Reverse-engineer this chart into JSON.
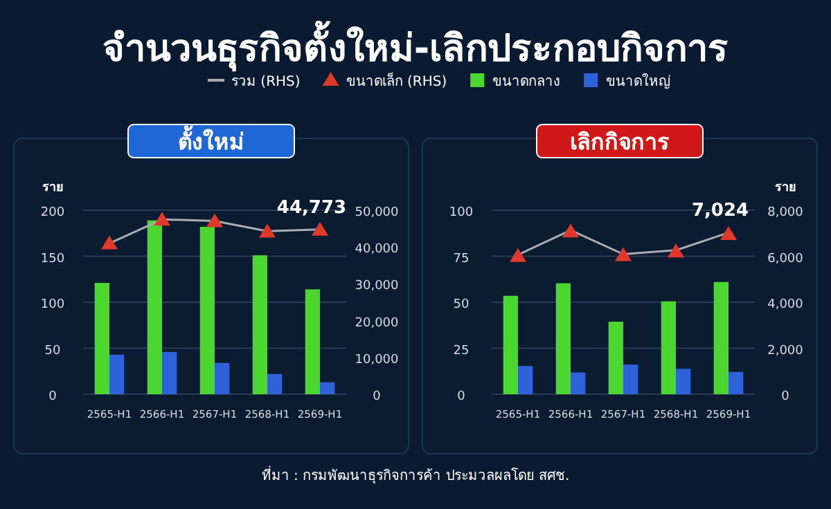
{
  "chart_data": [
    {
      "type": "bar",
      "title": "จำนวนธุรกิจตั้งใหม่-เลิกประกอบกิจการ",
      "subtitle": "ตั้งใหม่",
      "ylabel": "ราย",
      "categories": [
        "2565-H1",
        "2566-H1",
        "2567-H1",
        "2568-H1",
        "2569-H1"
      ],
      "series": [
        {
          "name": "รวม (RHS)",
          "type": "line",
          "axis": "y2",
          "marker": "none",
          "color": "#a9adb3",
          "values": [
            41000,
            47500,
            47100,
            44300,
            44773
          ],
          "value_labels": [
            null,
            null,
            null,
            null,
            "44,773"
          ]
        },
        {
          "name": "ขนาดเล็ก (RHS)",
          "type": "scatter",
          "axis": "y2",
          "marker": "triangle",
          "color": "#e0392b",
          "values": [
            40900,
            47300,
            46900,
            44100,
            44600
          ]
        },
        {
          "name": "ขนาดกลาง",
          "color": "#4cd630",
          "values": [
            121,
            189,
            182,
            151,
            114
          ]
        },
        {
          "name": "ขนาดใหญ่",
          "color": "#2f62d8",
          "values": [
            43,
            46,
            34,
            22,
            13
          ]
        }
      ],
      "ylim": [
        0,
        200
      ],
      "yticks": [
        0,
        50,
        100,
        150,
        200
      ],
      "y2lim": [
        0,
        50000
      ],
      "y2ticks": [
        0,
        {
          "value": 10000,
          "label": "10,000"
        },
        {
          "value": 20000,
          "label": "20,000"
        },
        {
          "value": 30000,
          "label": "30,000"
        },
        {
          "value": 40000,
          "label": "40,000"
        },
        {
          "value": 50000,
          "label": "50,000"
        }
      ],
      "grid": "y",
      "legend": "top"
    },
    {
      "type": "bar",
      "title": "เลิกกิจการ",
      "y2label": "ราย",
      "categories": [
        "2565-H1",
        "2566-H1",
        "2567-H1",
        "2568-H1",
        "2569-H1"
      ],
      "series": [
        {
          "type": "line",
          "axis": "y2",
          "marker": "none",
          "color": "#a9adb3",
          "values": [
            6060,
            7130,
            6090,
            6260,
            7024
          ],
          "value_labels": [
            null,
            null,
            null,
            null,
            "7,024"
          ]
        },
        {
          "type": "scatter",
          "axis": "y2",
          "marker": "triangle",
          "color": "#e0392b",
          "values": [
            5990,
            7060,
            6030,
            6190,
            6950
          ]
        },
        {
          "color": "#4cd630",
          "values": [
            53.5,
            60.3,
            39.4,
            50.5,
            61
          ]
        },
        {
          "color": "#2f62d8",
          "values": [
            15.3,
            11.8,
            16.1,
            13.8,
            12.1
          ]
        }
      ],
      "ylim": [
        0,
        100
      ],
      "yticks": [
        0,
        25,
        50,
        75,
        100
      ],
      "y2lim": [
        0,
        8000
      ],
      "y2ticks": [
        0,
        {
          "value": 2000,
          "label": "2,000"
        },
        {
          "value": 4000,
          "label": "4,000"
        },
        {
          "value": 6000,
          "label": "6,000"
        },
        {
          "value": 8000,
          "label": "8,000"
        }
      ],
      "grid": "y",
      "annotations": [
        "ที่มา : กรมพัฒนาธุรกิจการค้า ประมวลผลโดย สศช."
      ]
    }
  ]
}
